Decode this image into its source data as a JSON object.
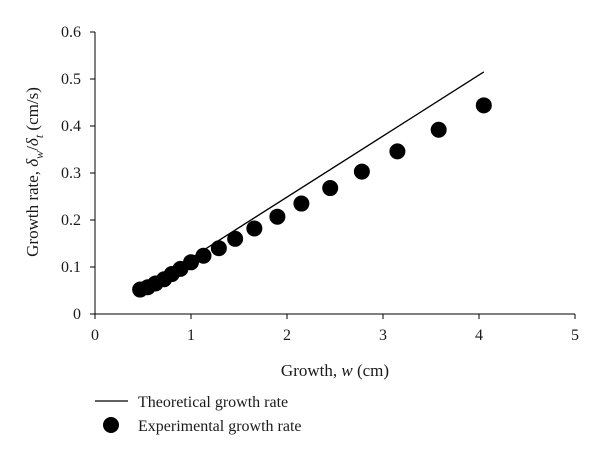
{
  "chart_data": {
    "type": "scatter",
    "xlabel": "Growth, w (cm)",
    "ylabel": "Growth rate, δw/δt (cm/s)",
    "xlabel_parts": {
      "text": "Growth, ",
      "var": "w",
      "unit": " (cm)"
    },
    "ylabel_parts": {
      "text": "Growth rate, ",
      "num": "δ",
      "num_sub": "w",
      "sep": "/",
      "den": "δ",
      "den_sub": "t",
      "unit": " (cm/s)"
    },
    "xlim": [
      0,
      5
    ],
    "ylim": [
      0,
      0.6
    ],
    "x_ticks": [
      0,
      1,
      2,
      3,
      4,
      5
    ],
    "y_ticks": [
      0,
      0.1,
      0.2,
      0.3,
      0.4,
      0.5,
      0.6
    ],
    "grid": false,
    "legend_position": "below",
    "series": [
      {
        "name": "Theoretical growth rate",
        "kind": "line",
        "color": "#000000",
        "x": [
          0.47,
          4.05
        ],
        "y": [
          0.05,
          0.515
        ]
      },
      {
        "name": "Experimental growth rate",
        "kind": "scatter",
        "color": "#000000",
        "x": [
          0.47,
          0.55,
          0.63,
          0.72,
          0.8,
          0.89,
          1.0,
          1.13,
          1.29,
          1.46,
          1.66,
          1.9,
          2.15,
          2.45,
          2.78,
          3.15,
          3.58,
          4.05
        ],
        "y": [
          0.052,
          0.057,
          0.065,
          0.074,
          0.085,
          0.096,
          0.11,
          0.124,
          0.14,
          0.16,
          0.182,
          0.207,
          0.235,
          0.268,
          0.303,
          0.346,
          0.392,
          0.444
        ]
      }
    ]
  }
}
